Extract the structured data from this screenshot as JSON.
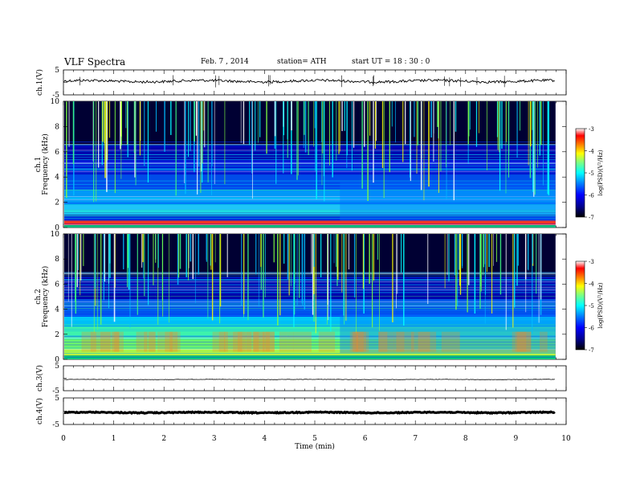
{
  "header": {
    "title": "VLF  Spectra",
    "date": "Feb. 7  , 2014",
    "station": "station= ATH",
    "start": "start  UT  =    18 : 30 : 0"
  },
  "chart_data": [
    {
      "type": "line",
      "panel": "ch1-waveform",
      "ylabel": "ch.1(V)",
      "ylim": [
        -5,
        5
      ],
      "yticklabels": [
        "5",
        "-5"
      ],
      "x_range_min": [
        0,
        9.8
      ],
      "series": [
        {
          "values_approx": "noisy signal around +0.5 V with small fluctuations"
        }
      ]
    },
    {
      "type": "heatmap",
      "panel": "ch1-spectrogram",
      "ylabel": "ch.1\nFrequency  (kHz)",
      "ylim": [
        0,
        10
      ],
      "yticklabels": [
        "0",
        "2",
        "4",
        "6",
        "8",
        "10"
      ],
      "x_range_min": [
        0,
        9.8
      ],
      "colorbar": {
        "label": "log(PSD)(V²/Hz)",
        "range": [
          -7,
          -3
        ],
        "ticks": [
          "-3",
          "-4",
          "-5",
          "-6",
          "-7"
        ]
      },
      "features": "broadband impulsive sferics; intense low-frequency band below 1 kHz; character change near 5.5 min"
    },
    {
      "type": "heatmap",
      "panel": "ch2-spectrogram",
      "ylabel": "ch.2\nFrequency  (kHz)",
      "ylim": [
        0,
        10
      ],
      "yticklabels": [
        "0",
        "2",
        "4",
        "6",
        "8",
        "10"
      ],
      "x_range_min": [
        0,
        9.8
      ],
      "colorbar": {
        "label": "log(PSD)(V²/Hz)",
        "range": [
          -7,
          -3
        ],
        "ticks": [
          "-3",
          "-4",
          "-5",
          "-6",
          "-7"
        ]
      },
      "features": "broadband impulsive sferics; elevated power 0-3 kHz"
    },
    {
      "type": "line",
      "panel": "ch3-waveform",
      "ylabel": "ch.3(V)",
      "ylim": [
        -5,
        5
      ],
      "yticklabels": [
        "5",
        "-5"
      ],
      "x_range_min": [
        0,
        9.8
      ],
      "series": [
        {
          "values_approx": "flat near -0.5 V"
        }
      ]
    },
    {
      "type": "line",
      "panel": "ch4-waveform",
      "ylabel": "ch.4(V)",
      "ylim": [
        -5,
        5
      ],
      "yticklabels": [
        "5",
        "-5"
      ],
      "x_range_min": [
        0,
        9.8
      ],
      "series": [
        {
          "values_approx": "thick flat trace near -0.5 V"
        }
      ]
    }
  ],
  "xaxis": {
    "label": "Time  (min)",
    "ticks": [
      "0",
      "1",
      "2",
      "3",
      "4",
      "5",
      "6",
      "7",
      "8",
      "9",
      "10"
    ],
    "xlim": [
      0,
      10
    ]
  },
  "colors": {
    "colormap": [
      "#000000",
      "#00008f",
      "#0000ff",
      "#0080ff",
      "#00ffff",
      "#80ff80",
      "#ffff00",
      "#ff8000",
      "#ff0000",
      "#ffffff"
    ]
  }
}
